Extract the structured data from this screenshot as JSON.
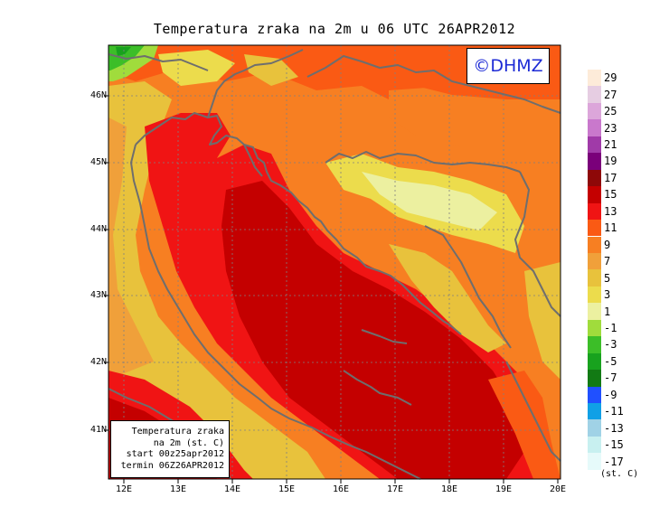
{
  "map": {
    "title": "Temperatura zraka na 2m u 06 UTC 26APR2012",
    "logo": "©DHMZ",
    "lat_labels": [
      "46N",
      "45N",
      "44N",
      "43N",
      "42N",
      "41N"
    ],
    "lon_labels": [
      "12E",
      "13E",
      "14E",
      "15E",
      "16E",
      "17E",
      "18E",
      "19E",
      "20E"
    ],
    "info_box": {
      "line1": "Temperatura zraka",
      "line2": "na 2m (st. C)",
      "line3": "start 00z25apr2012",
      "line4": "termin 06Z26APR2012"
    }
  },
  "legend": {
    "unit": "(st. C)",
    "items": [
      {
        "label": "29",
        "color": "#fdebd9"
      },
      {
        "label": "27",
        "color": "#e6cde2"
      },
      {
        "label": "25",
        "color": "#dca6da"
      },
      {
        "label": "23",
        "color": "#c978cc"
      },
      {
        "label": "21",
        "color": "#a03aa8"
      },
      {
        "label": "19",
        "color": "#7a007a"
      },
      {
        "label": "17",
        "color": "#8e0808"
      },
      {
        "label": "15",
        "color": "#c40000"
      },
      {
        "label": "13",
        "color": "#f01414"
      },
      {
        "label": "11",
        "color": "#fa5a14"
      },
      {
        "label": "9",
        "color": "#f77f22"
      },
      {
        "label": "7",
        "color": "#f0a03a"
      },
      {
        "label": "5",
        "color": "#e8c23c"
      },
      {
        "label": "3",
        "color": "#ecdc4c"
      },
      {
        "label": "1",
        "color": "#ecf0a0"
      },
      {
        "label": "-1",
        "color": "#a0dc3c"
      },
      {
        "label": "-3",
        "color": "#3cbe28"
      },
      {
        "label": "-5",
        "color": "#18a21e"
      },
      {
        "label": "-7",
        "color": "#127a14"
      },
      {
        "label": "-9",
        "color": "#2050ff"
      },
      {
        "label": "-11",
        "color": "#10a0e6"
      },
      {
        "label": "-13",
        "color": "#a0d2e6"
      },
      {
        "label": "-15",
        "color": "#c8f0f0"
      },
      {
        "label": "-17",
        "color": "#e6fafa"
      }
    ]
  }
}
